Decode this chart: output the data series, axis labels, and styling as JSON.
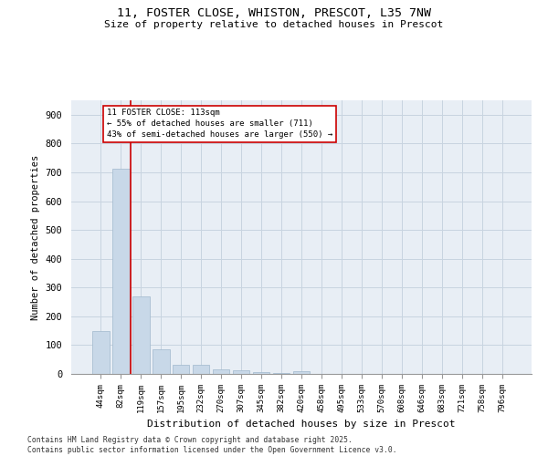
{
  "title_line1": "11, FOSTER CLOSE, WHISTON, PRESCOT, L35 7NW",
  "title_line2": "Size of property relative to detached houses in Prescot",
  "xlabel": "Distribution of detached houses by size in Prescot",
  "ylabel": "Number of detached properties",
  "bar_color": "#c8d8e8",
  "bar_edge_color": "#a0b8cc",
  "grid_color": "#c8d4e0",
  "background_color": "#e8eef5",
  "vline_color": "#cc0000",
  "annotation_text": "11 FOSTER CLOSE: 113sqm\n← 55% of detached houses are smaller (711)\n43% of semi-detached houses are larger (550) →",
  "annotation_box_color": "#cc0000",
  "categories": [
    "44sqm",
    "82sqm",
    "119sqm",
    "157sqm",
    "195sqm",
    "232sqm",
    "270sqm",
    "307sqm",
    "345sqm",
    "382sqm",
    "420sqm",
    "458sqm",
    "495sqm",
    "533sqm",
    "570sqm",
    "608sqm",
    "646sqm",
    "683sqm",
    "721sqm",
    "758sqm",
    "796sqm"
  ],
  "values": [
    150,
    711,
    270,
    85,
    33,
    33,
    17,
    13,
    7,
    3,
    8,
    0,
    0,
    0,
    0,
    0,
    0,
    0,
    0,
    0,
    0
  ],
  "ylim": [
    0,
    950
  ],
  "yticks": [
    0,
    100,
    200,
    300,
    400,
    500,
    600,
    700,
    800,
    900
  ],
  "footer_text": "Contains HM Land Registry data © Crown copyright and database right 2025.\nContains public sector information licensed under the Open Government Licence v3.0.",
  "figsize": [
    6.0,
    5.0
  ],
  "dpi": 100
}
